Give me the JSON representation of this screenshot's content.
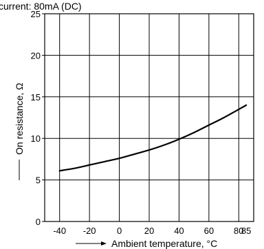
{
  "chart_data": {
    "type": "line",
    "title": "current: 80mA (DC)",
    "xlabel": "Ambient temperature, °C",
    "ylabel": "On resistance, Ω",
    "xlim": [
      -50,
      90
    ],
    "ylim": [
      0,
      25
    ],
    "x_ticks": [
      -40,
      -20,
      0,
      20,
      40,
      60,
      80,
      85
    ],
    "x_tick_labels": [
      "-40",
      "-20",
      "0",
      "20",
      "40",
      "60",
      "80",
      "85"
    ],
    "y_ticks": [
      0,
      5,
      10,
      15,
      20,
      25
    ],
    "y_tick_labels": [
      "0",
      "5",
      "10",
      "15",
      "20",
      "25"
    ],
    "x_gridlines": [
      -40,
      -20,
      0,
      20,
      40,
      60,
      80
    ],
    "y_gridlines": [
      5,
      10,
      15,
      20
    ],
    "grid": true,
    "series": [
      {
        "color": "#000000",
        "x": [
          -40,
          -30,
          -20,
          -10,
          0,
          10,
          20,
          30,
          40,
          50,
          60,
          70,
          85
        ],
        "y": [
          6.1,
          6.4,
          6.8,
          7.2,
          7.6,
          8.1,
          8.6,
          9.2,
          9.9,
          10.7,
          11.6,
          12.5,
          14.0
        ]
      }
    ]
  }
}
